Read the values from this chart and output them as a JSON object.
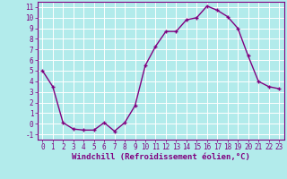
{
  "x": [
    0,
    1,
    2,
    3,
    4,
    5,
    6,
    7,
    8,
    9,
    10,
    11,
    12,
    13,
    14,
    15,
    16,
    17,
    18,
    19,
    20,
    21,
    22,
    23
  ],
  "y": [
    5.0,
    3.5,
    0.1,
    -0.5,
    -0.6,
    -0.6,
    0.1,
    -0.7,
    0.1,
    1.7,
    5.5,
    7.3,
    8.7,
    8.7,
    9.8,
    10.0,
    11.1,
    10.7,
    10.1,
    9.0,
    6.4,
    4.0,
    3.5,
    3.3
  ],
  "color": "#800080",
  "marker": "+",
  "xlabel": "Windchill (Refroidissement éolien,°C)",
  "xlim": [
    -0.5,
    23.5
  ],
  "ylim": [
    -1.5,
    11.5
  ],
  "yticks": [
    -1,
    0,
    1,
    2,
    3,
    4,
    5,
    6,
    7,
    8,
    9,
    10,
    11
  ],
  "xticks": [
    0,
    1,
    2,
    3,
    4,
    5,
    6,
    7,
    8,
    9,
    10,
    11,
    12,
    13,
    14,
    15,
    16,
    17,
    18,
    19,
    20,
    21,
    22,
    23
  ],
  "bg_color": "#b2ebeb",
  "grid_color": "#ffffff",
  "line_color": "#800080",
  "tick_color": "#800080",
  "spine_color": "#800080",
  "tick_fontsize": 5.5,
  "xlabel_fontsize": 6.5,
  "linewidth": 1.0,
  "markersize": 3.5,
  "markeredgewidth": 1.0
}
